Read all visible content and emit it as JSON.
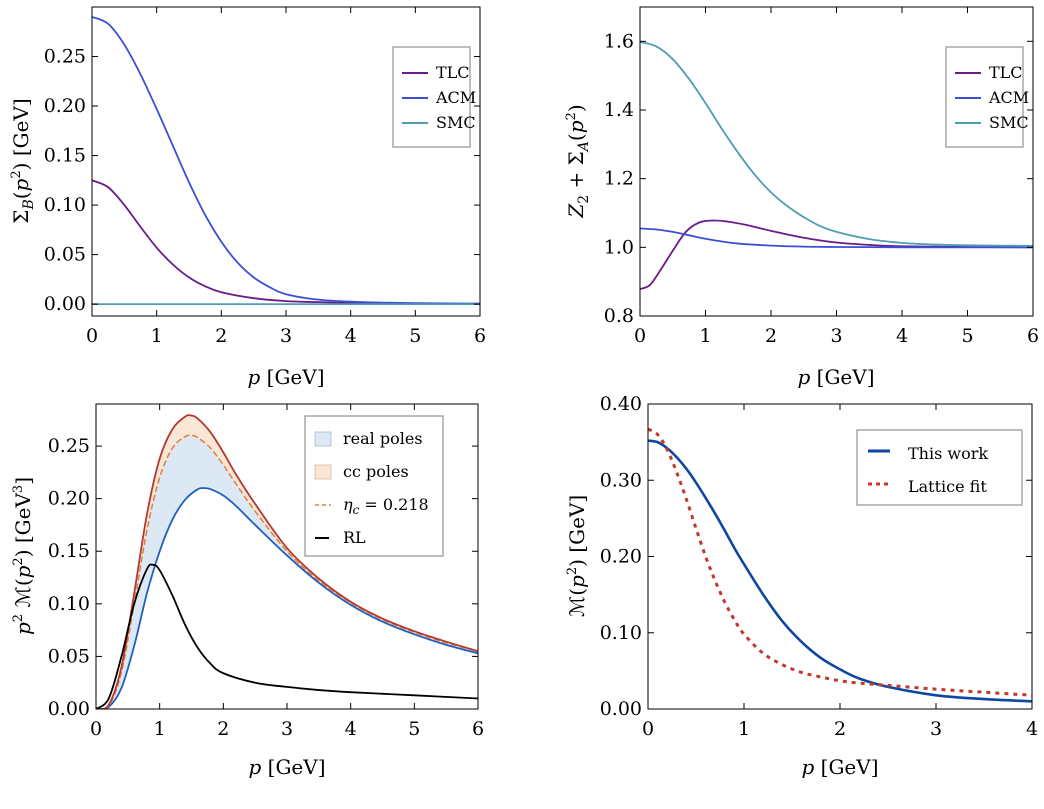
{
  "chart_data": [
    {
      "type": "line",
      "xlabel": "p [GeV]",
      "ylabel": "Σ_B(p²) [GeV]",
      "xlim": [
        0,
        6
      ],
      "ylim": [
        -0.012,
        0.3
      ],
      "xticks": [
        "0",
        "1",
        "2",
        "3",
        "4",
        "5",
        "6"
      ],
      "yticks": [
        "0.00",
        "0.05",
        "0.10",
        "0.15",
        "0.20",
        "0.25"
      ],
      "yticks_values": [
        0,
        0.05,
        0.1,
        0.15,
        0.2,
        0.25
      ],
      "xticks_values": [
        0,
        1,
        2,
        3,
        4,
        5,
        6
      ],
      "grid": false,
      "legend_position": "top-right",
      "series": [
        {
          "name": "TLC",
          "color": "#6a1b8a",
          "x": [
            0,
            0.25,
            0.5,
            0.75,
            1,
            1.25,
            1.5,
            1.75,
            2,
            2.5,
            3,
            3.5,
            4,
            5,
            6
          ],
          "y": [
            0.125,
            0.118,
            0.1,
            0.078,
            0.057,
            0.04,
            0.027,
            0.018,
            0.012,
            0.006,
            0.003,
            0.002,
            0.0012,
            0.0005,
            0.0003
          ]
        },
        {
          "name": "ACM",
          "color": "#3b4fd4",
          "x": [
            0,
            0.25,
            0.5,
            0.75,
            1,
            1.25,
            1.5,
            1.75,
            2,
            2.25,
            2.5,
            2.75,
            3,
            3.5,
            4,
            4.5,
            5,
            6
          ],
          "y": [
            0.29,
            0.283,
            0.262,
            0.232,
            0.197,
            0.16,
            0.123,
            0.09,
            0.063,
            0.042,
            0.027,
            0.017,
            0.01,
            0.0045,
            0.0025,
            0.0015,
            0.001,
            0.0005
          ]
        },
        {
          "name": "SMC",
          "color": "#4f9db2",
          "x": [
            0,
            6
          ],
          "y": [
            0,
            0
          ]
        }
      ]
    },
    {
      "type": "line",
      "xlabel": "p [GeV]",
      "ylabel": "Z₂ + Σ_A(p²)",
      "xlim": [
        0,
        6
      ],
      "ylim": [
        0.8,
        1.7
      ],
      "xticks": [
        "0",
        "1",
        "2",
        "3",
        "4",
        "5",
        "6"
      ],
      "yticks": [
        "0.8",
        "1.0",
        "1.2",
        "1.4",
        "1.6"
      ],
      "yticks_values": [
        0.8,
        1.0,
        1.2,
        1.4,
        1.6
      ],
      "xticks_values": [
        0,
        1,
        2,
        3,
        4,
        5,
        6
      ],
      "grid": false,
      "legend_position": "top-right",
      "series": [
        {
          "name": "TLC",
          "color": "#6a1b8a",
          "x": [
            0,
            0.15,
            0.3,
            0.5,
            0.7,
            0.9,
            1.1,
            1.3,
            1.6,
            2,
            2.5,
            3,
            3.5,
            4,
            5,
            6
          ],
          "y": [
            0.878,
            0.89,
            0.93,
            0.99,
            1.045,
            1.072,
            1.078,
            1.076,
            1.066,
            1.048,
            1.028,
            1.014,
            1.007,
            1.003,
            1.001,
            1.0
          ]
        },
        {
          "name": "ACM",
          "color": "#3b4fd4",
          "x": [
            0,
            0.25,
            0.5,
            0.75,
            1,
            1.25,
            1.5,
            2,
            2.5,
            3,
            4,
            6
          ],
          "y": [
            1.055,
            1.052,
            1.045,
            1.035,
            1.025,
            1.017,
            1.011,
            1.005,
            1.002,
            1.001,
            1.0,
            1.0
          ]
        },
        {
          "name": "SMC",
          "color": "#4f9db2",
          "x": [
            0,
            0.25,
            0.5,
            0.75,
            1,
            1.25,
            1.5,
            1.75,
            2,
            2.25,
            2.5,
            2.75,
            3,
            3.5,
            4,
            4.5,
            5,
            6
          ],
          "y": [
            1.598,
            1.585,
            1.548,
            1.49,
            1.42,
            1.345,
            1.275,
            1.212,
            1.16,
            1.12,
            1.088,
            1.062,
            1.045,
            1.024,
            1.013,
            1.008,
            1.006,
            1.004
          ]
        }
      ]
    },
    {
      "type": "area",
      "xlabel": "p [GeV]",
      "ylabel": "p² ℳ(p²) [GeV³]",
      "xlim": [
        0,
        6
      ],
      "ylim": [
        0,
        0.29
      ],
      "xticks": [
        "0",
        "1",
        "2",
        "3",
        "4",
        "5",
        "6"
      ],
      "yticks": [
        "0.00",
        "0.05",
        "0.10",
        "0.15",
        "0.20",
        "0.25"
      ],
      "yticks_values": [
        0,
        0.05,
        0.1,
        0.15,
        0.2,
        0.25
      ],
      "xticks_values": [
        0,
        1,
        2,
        3,
        4,
        5,
        6
      ],
      "grid": false,
      "legend_position": "top-right",
      "legend": [
        {
          "name": "real poles",
          "kind": "patch",
          "fill": "#dce8f3",
          "stroke": "#b5c7d8"
        },
        {
          "name": "cc poles",
          "kind": "patch",
          "fill": "#f8e6d6",
          "stroke": "#e2c4ab"
        },
        {
          "name": "η_c = 0.218",
          "kind": "dashed",
          "color": "#e08040"
        },
        {
          "name": "RL",
          "kind": "line",
          "color": "#000000"
        }
      ],
      "series": [
        {
          "name": "lower",
          "color": "#1f5fbf",
          "x": [
            0,
            0.2,
            0.4,
            0.6,
            0.8,
            1.0,
            1.2,
            1.4,
            1.6,
            1.7,
            1.8,
            2.0,
            2.2,
            2.5,
            3.0,
            3.5,
            4.0,
            4.5,
            5.0,
            5.5,
            6.0
          ],
          "y": [
            0,
            0.002,
            0.02,
            0.06,
            0.11,
            0.15,
            0.18,
            0.199,
            0.209,
            0.21,
            0.209,
            0.203,
            0.193,
            0.175,
            0.146,
            0.12,
            0.099,
            0.083,
            0.071,
            0.061,
            0.053
          ]
        },
        {
          "name": "dashed",
          "color": "#e08040",
          "x": [
            0,
            0.2,
            0.4,
            0.6,
            0.8,
            1.0,
            1.2,
            1.4,
            1.5,
            1.6,
            1.8,
            2.0,
            2.2,
            2.5,
            3.0,
            3.5,
            4.0,
            4.5,
            5.0,
            5.5,
            6.0
          ],
          "y": [
            0,
            0.003,
            0.035,
            0.1,
            0.17,
            0.22,
            0.248,
            0.259,
            0.26,
            0.258,
            0.248,
            0.232,
            0.214,
            0.188,
            0.15,
            0.122,
            0.101,
            0.085,
            0.073,
            0.063,
            0.055
          ]
        },
        {
          "name": "upper",
          "color": "#b23a32",
          "x": [
            0,
            0.2,
            0.4,
            0.6,
            0.8,
            1.0,
            1.2,
            1.4,
            1.5,
            1.6,
            1.8,
            2.0,
            2.2,
            2.5,
            3.0,
            3.5,
            4.0,
            4.5,
            5.0,
            5.5,
            6.0
          ],
          "y": [
            0,
            0.004,
            0.04,
            0.11,
            0.185,
            0.238,
            0.266,
            0.278,
            0.279,
            0.276,
            0.263,
            0.244,
            0.223,
            0.195,
            0.153,
            0.124,
            0.102,
            0.086,
            0.074,
            0.064,
            0.055
          ]
        },
        {
          "name": "RL",
          "color": "#000000",
          "x": [
            0,
            0.2,
            0.4,
            0.6,
            0.8,
            0.9,
            1.0,
            1.2,
            1.4,
            1.6,
            1.8,
            2.0,
            2.5,
            3.0,
            3.5,
            4.0,
            5.0,
            6.0
          ],
          "y": [
            0,
            0.01,
            0.05,
            0.1,
            0.133,
            0.137,
            0.132,
            0.108,
            0.08,
            0.058,
            0.043,
            0.034,
            0.025,
            0.021,
            0.018,
            0.016,
            0.013,
            0.01
          ]
        }
      ]
    },
    {
      "type": "line",
      "xlabel": "p [GeV]",
      "ylabel": "ℳ(p²) [GeV]",
      "xlim": [
        0,
        4
      ],
      "ylim": [
        0,
        0.4
      ],
      "xticks": [
        "0",
        "1",
        "2",
        "3",
        "4"
      ],
      "yticks": [
        "0.00",
        "0.10",
        "0.20",
        "0.30",
        "0.40"
      ],
      "yticks_values": [
        0,
        0.1,
        0.2,
        0.3,
        0.4
      ],
      "xticks_values": [
        0,
        1,
        2,
        3,
        4
      ],
      "grid": false,
      "legend_position": "top-right",
      "series": [
        {
          "name": "This work",
          "color": "#0d47a1",
          "dashed": false,
          "x": [
            0,
            0.1,
            0.2,
            0.3,
            0.4,
            0.5,
            0.6,
            0.7,
            0.8,
            0.9,
            1.0,
            1.2,
            1.4,
            1.6,
            1.8,
            2.0,
            2.2,
            2.5,
            3.0,
            3.5,
            4.0
          ],
          "y": [
            0.352,
            0.35,
            0.342,
            0.33,
            0.315,
            0.297,
            0.277,
            0.256,
            0.234,
            0.211,
            0.19,
            0.15,
            0.115,
            0.088,
            0.067,
            0.052,
            0.04,
            0.029,
            0.018,
            0.013,
            0.01
          ]
        },
        {
          "name": "Lattice fit",
          "color": "#c0392b",
          "dashed": true,
          "x": [
            0,
            0.1,
            0.2,
            0.3,
            0.4,
            0.5,
            0.6,
            0.7,
            0.8,
            0.9,
            1.0,
            1.2,
            1.4,
            1.6,
            1.8,
            2.0,
            2.2,
            2.5,
            3.0,
            3.5,
            4.0
          ],
          "y": [
            0.367,
            0.36,
            0.34,
            0.31,
            0.275,
            0.237,
            0.2,
            0.168,
            0.14,
            0.117,
            0.098,
            0.073,
            0.058,
            0.048,
            0.042,
            0.037,
            0.034,
            0.031,
            0.026,
            0.022,
            0.018
          ]
        }
      ]
    }
  ]
}
